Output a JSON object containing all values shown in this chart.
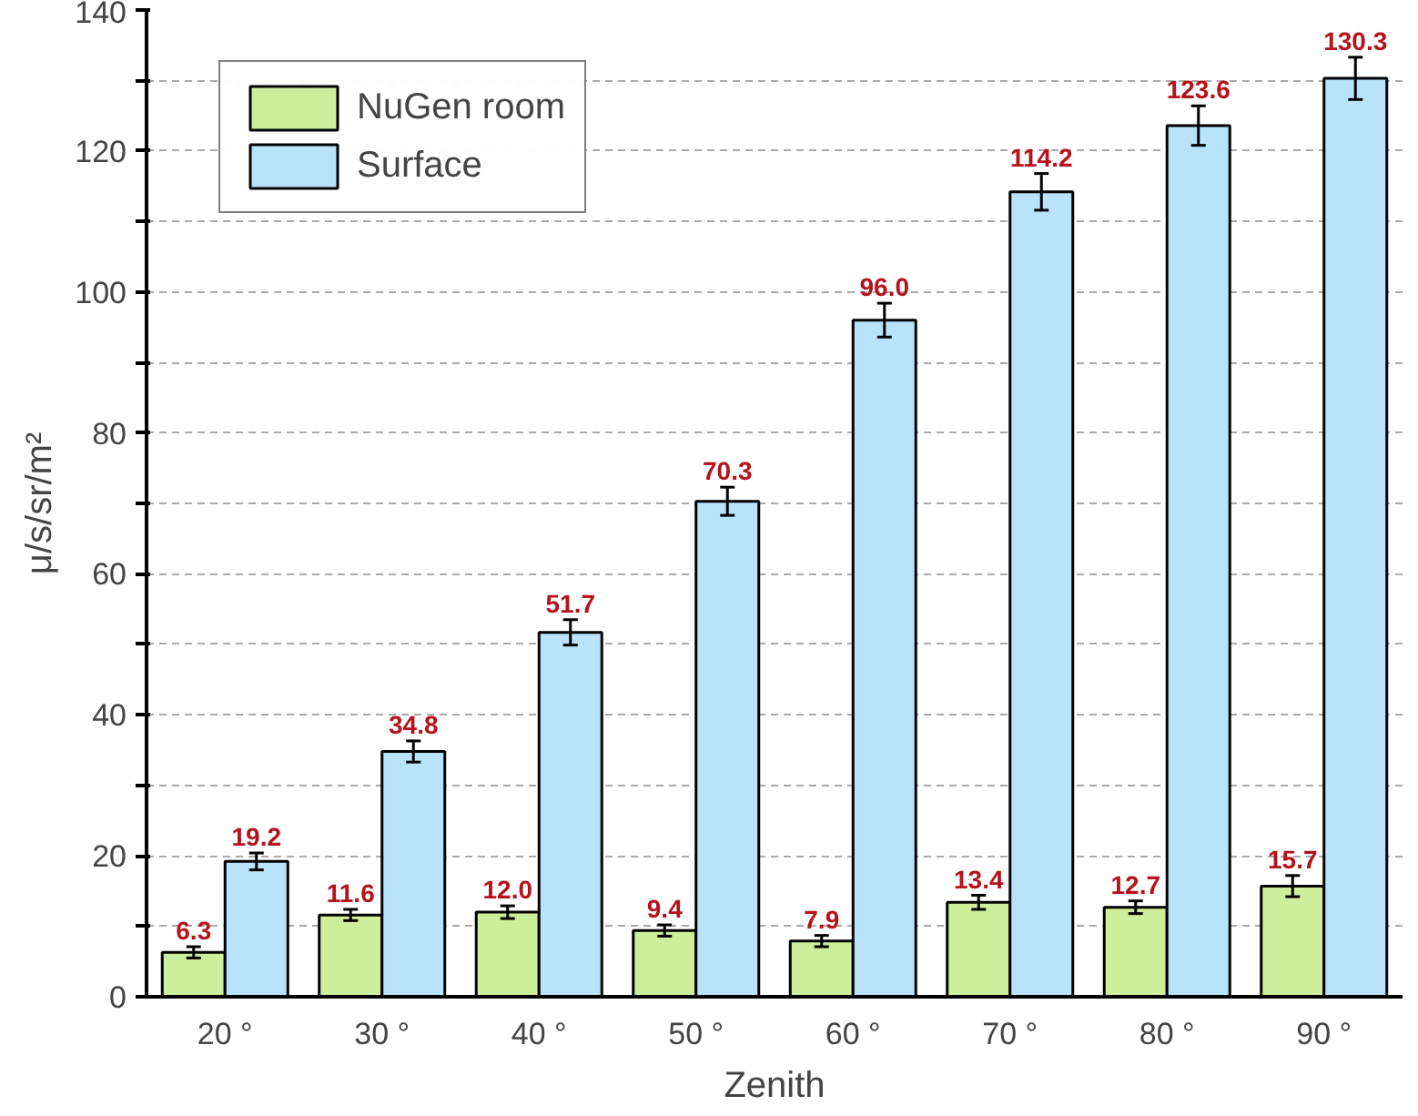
{
  "chart_data": {
    "type": "bar",
    "xlabel": "Zenith",
    "ylabel": "μ/s/sr/m²",
    "categories": [
      "20 °",
      "30 °",
      "40 °",
      "50 °",
      "60 °",
      "70 °",
      "80 °",
      "90 °"
    ],
    "series": [
      {
        "name": "NuGen room",
        "color": "#cdef9c",
        "values": [
          6.3,
          11.6,
          12.0,
          9.4,
          7.9,
          13.4,
          12.7,
          15.7
        ],
        "errors": [
          0.8,
          0.8,
          0.9,
          0.8,
          0.8,
          1.0,
          0.9,
          1.5
        ],
        "value_labels": [
          "6.3",
          "11.6",
          "12.0",
          "9.4",
          "7.9",
          "13.4",
          "12.7",
          "15.7"
        ]
      },
      {
        "name": "Surface",
        "color": "#b8e3fb",
        "values": [
          19.2,
          34.8,
          51.7,
          70.3,
          96.0,
          114.2,
          123.6,
          130.3
        ],
        "errors": [
          1.2,
          1.5,
          1.8,
          2.0,
          2.4,
          2.6,
          2.8,
          3.0
        ],
        "value_labels": [
          "19.2",
          "34.8",
          "51.7",
          "70.3",
          "96.0",
          "114.2",
          "123.6",
          "130.3"
        ]
      }
    ],
    "ylim": [
      0,
      140
    ],
    "yticks": [
      0,
      {
        "value": 10,
        "label": null
      },
      20,
      {
        "value": 30,
        "label": null
      },
      40,
      {
        "value": 50,
        "label": null
      },
      60,
      {
        "value": 70,
        "label": null
      },
      80,
      {
        "value": 90,
        "label": null
      },
      100,
      {
        "value": 110,
        "label": null
      },
      120,
      {
        "value": 130,
        "label": null
      },
      140
    ],
    "grid": "y",
    "legend": "top left"
  }
}
